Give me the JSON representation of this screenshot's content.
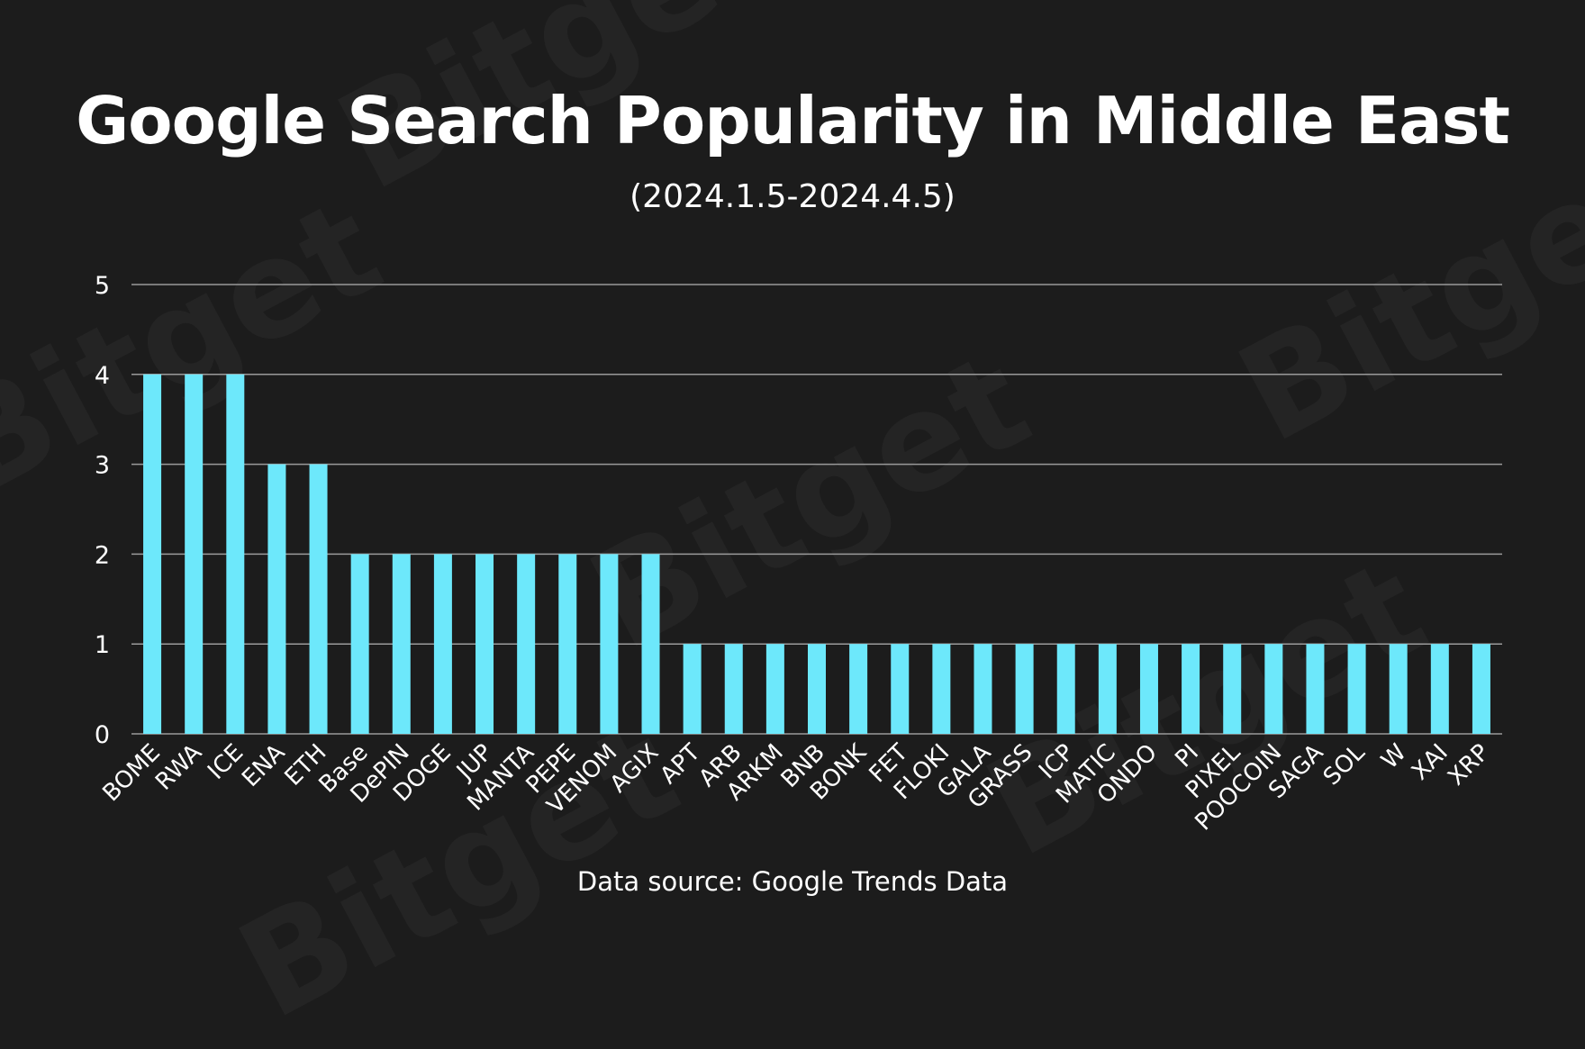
{
  "watermark": "Bitget",
  "chart_data": {
    "type": "bar",
    "title": "Google Search Popularity in Middle East",
    "subtitle": "(2024.1.5-2024.4.5)",
    "source": "Data source: Google Trends Data",
    "xlabel": "",
    "ylabel": "",
    "ylim": [
      0,
      5
    ],
    "yticks": [
      "0",
      "1",
      "2",
      "3",
      "4",
      "5"
    ],
    "grid": true,
    "legend": "none",
    "bar_color": "#6de8fb",
    "categories": [
      "BOME",
      "RWA",
      "ICE",
      "ENA",
      "ETH",
      "Base",
      "DePIN",
      "DOGE",
      "JUP",
      "MANTA",
      "PEPE",
      "VENOM",
      "AGIX",
      "APT",
      "ARB",
      "ARKM",
      "BNB",
      "BONK",
      "FET",
      "FLOKI",
      "GALA",
      "GRASS",
      "ICP",
      "MATIC",
      "ONDO",
      "PI",
      "PIXEL",
      "POOCOIN",
      "SAGA",
      "SOL",
      "W",
      "XAI",
      "XRP"
    ],
    "values": [
      4,
      4,
      4,
      3,
      3,
      2,
      2,
      2,
      2,
      2,
      2,
      2,
      2,
      1,
      1,
      1,
      1,
      1,
      1,
      1,
      1,
      1,
      1,
      1,
      1,
      1,
      1,
      1,
      1,
      1,
      1,
      1,
      1
    ]
  }
}
